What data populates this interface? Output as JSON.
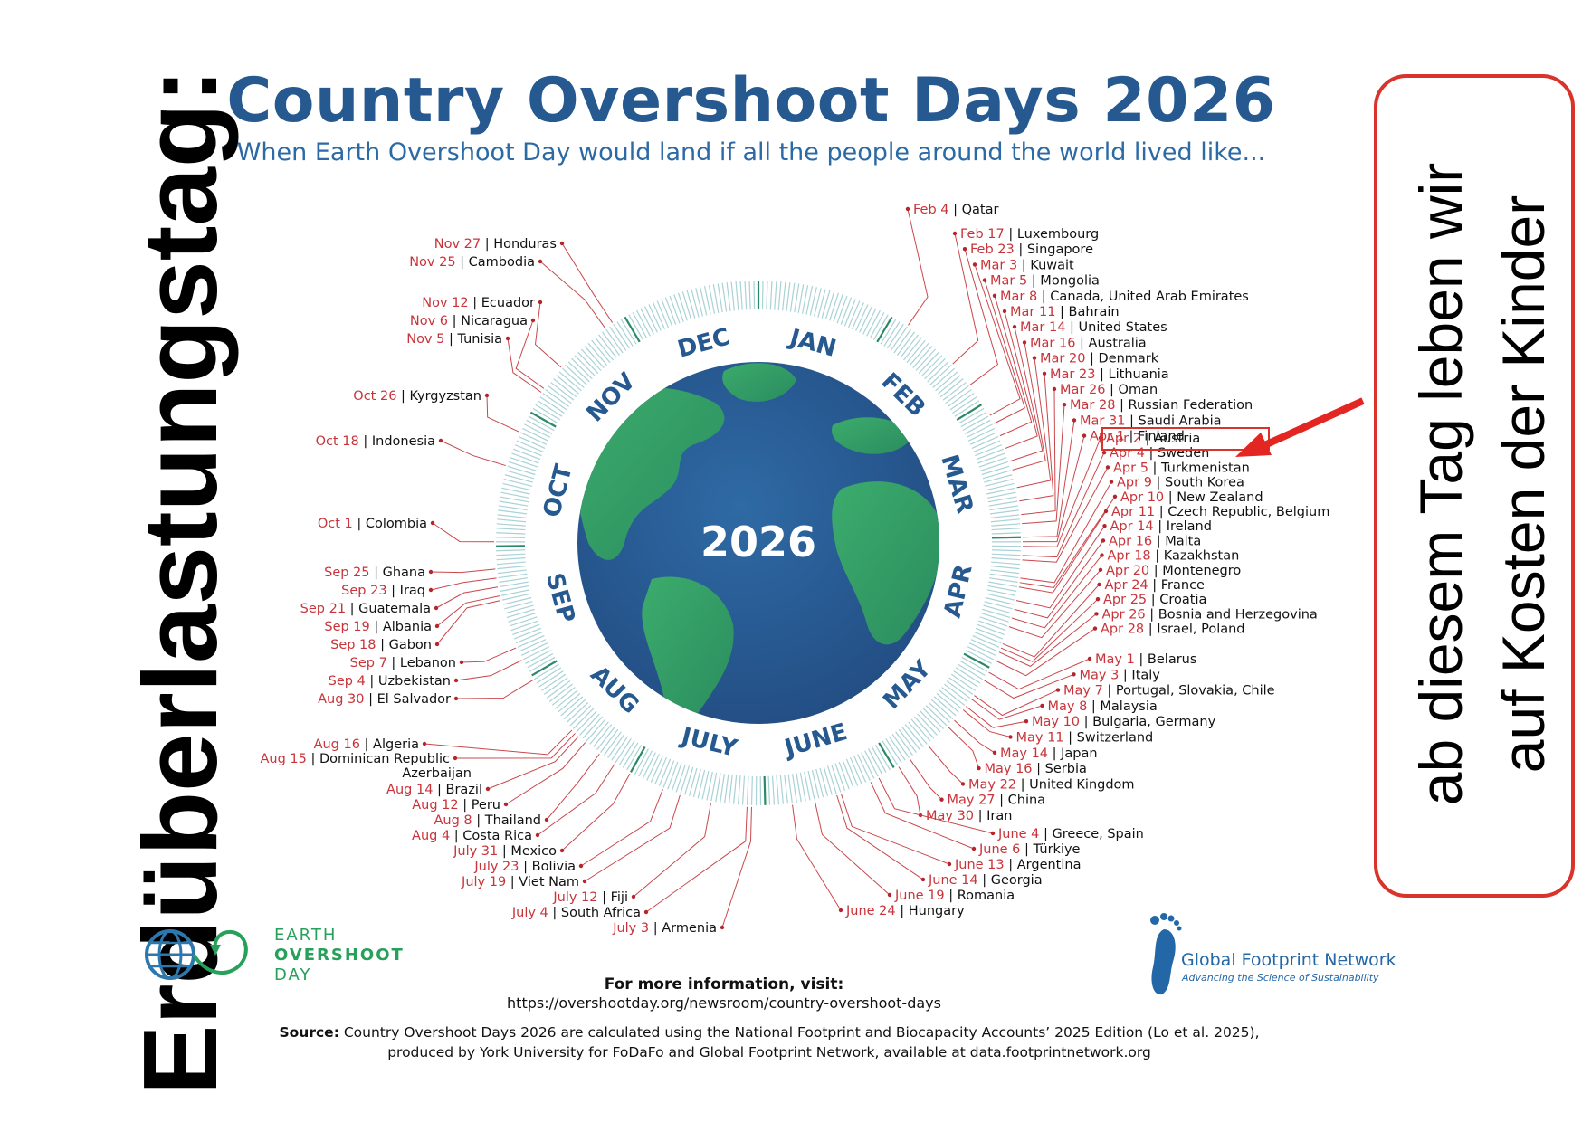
{
  "side_title": "Erdüberlastungstag:",
  "title": "Country Overshoot Days 2026",
  "subtitle": "When Earth Overshoot Day would land if all the people around the world lived like...",
  "globe_year": "2026",
  "months": [
    "JAN",
    "FEB",
    "MAR",
    "APR",
    "MAY",
    "JUNE",
    "JULY",
    "AUG",
    "SEP",
    "OCT",
    "NOV",
    "DEC"
  ],
  "callout": {
    "line1": "ab diesem Tag leben wir",
    "line2": "auf Kosten der Kinder"
  },
  "highlight": {
    "date": "Apr 2",
    "country": "Austria"
  },
  "right_labels": [
    {
      "date": "Feb 4",
      "country": "Qatar"
    },
    {
      "date": "Feb 17",
      "country": "Luxembourg"
    },
    {
      "date": "Feb 23",
      "country": "Singapore"
    },
    {
      "date": "Mar 3",
      "country": "Kuwait"
    },
    {
      "date": "Mar 5",
      "country": "Mongolia"
    },
    {
      "date": "Mar 8",
      "country": "Canada, United Arab Emirates"
    },
    {
      "date": "Mar 11",
      "country": "Bahrain"
    },
    {
      "date": "Mar 14",
      "country": "United States"
    },
    {
      "date": "Mar 16",
      "country": "Australia"
    },
    {
      "date": "Mar 20",
      "country": "Denmark"
    },
    {
      "date": "Mar 23",
      "country": "Lithuania"
    },
    {
      "date": "Mar 26",
      "country": "Oman"
    },
    {
      "date": "Mar 28",
      "country": "Russian Federation"
    },
    {
      "date": "Mar 31",
      "country": "Saudi Arabia"
    },
    {
      "date": "Apr 1",
      "country": "Finland"
    },
    {
      "date": "Apr 2",
      "country": "Austria"
    },
    {
      "date": "Apr 4",
      "country": "Sweden"
    },
    {
      "date": "Apr 5",
      "country": "Turkmenistan"
    },
    {
      "date": "Apr 9",
      "country": "South Korea"
    },
    {
      "date": "Apr 10",
      "country": "New Zealand"
    },
    {
      "date": "Apr 11",
      "country": "Czech Republic, Belgium"
    },
    {
      "date": "Apr 14",
      "country": "Ireland"
    },
    {
      "date": "Apr 16",
      "country": "Malta"
    },
    {
      "date": "Apr 18",
      "country": "Kazakhstan"
    },
    {
      "date": "Apr 20",
      "country": "Montenegro"
    },
    {
      "date": "Apr 24",
      "country": "France"
    },
    {
      "date": "Apr 25",
      "country": "Croatia"
    },
    {
      "date": "Apr 26",
      "country": "Bosnia and Herzegovina"
    },
    {
      "date": "Apr 28",
      "country": "Israel, Poland"
    },
    {
      "date": "May 1",
      "country": "Belarus"
    },
    {
      "date": "May 3",
      "country": "Italy"
    },
    {
      "date": "May 7",
      "country": "Portugal, Slovakia, Chile"
    },
    {
      "date": "May 8",
      "country": "Malaysia"
    },
    {
      "date": "May 10",
      "country": "Bulgaria, Germany"
    },
    {
      "date": "May 11",
      "country": "Switzerland"
    },
    {
      "date": "May 14",
      "country": "Japan"
    },
    {
      "date": "May 16",
      "country": "Serbia"
    },
    {
      "date": "May 22",
      "country": "United Kingdom"
    },
    {
      "date": "May 27",
      "country": "China"
    },
    {
      "date": "May 30",
      "country": "Iran"
    },
    {
      "date": "June 4",
      "country": "Greece, Spain"
    },
    {
      "date": "June 6",
      "country": "Türkiye"
    },
    {
      "date": "June 13",
      "country": "Argentina"
    },
    {
      "date": "June 14",
      "country": "Georgia"
    },
    {
      "date": "June 19",
      "country": "Romania"
    },
    {
      "date": "June 24",
      "country": "Hungary"
    }
  ],
  "left_labels": [
    {
      "date": "Nov 27",
      "country": "Honduras"
    },
    {
      "date": "Nov 25",
      "country": "Cambodia"
    },
    {
      "date": "Nov 12",
      "country": "Ecuador"
    },
    {
      "date": "Nov 6",
      "country": "Nicaragua"
    },
    {
      "date": "Nov 5",
      "country": "Tunisia"
    },
    {
      "date": "Oct 26",
      "country": "Kyrgyzstan"
    },
    {
      "date": "Oct 18",
      "country": "Indonesia"
    },
    {
      "date": "Oct 1",
      "country": "Colombia"
    },
    {
      "date": "Sep 25",
      "country": "Ghana"
    },
    {
      "date": "Sep 23",
      "country": "Iraq"
    },
    {
      "date": "Sep 21",
      "country": "Guatemala"
    },
    {
      "date": "Sep 19",
      "country": "Albania"
    },
    {
      "date": "Sep 18",
      "country": "Gabon"
    },
    {
      "date": "Sep 7",
      "country": "Lebanon"
    },
    {
      "date": "Sep 4",
      "country": "Uzbekistan"
    },
    {
      "date": "Aug 30",
      "country": "El Salvador"
    },
    {
      "date": "Aug 16",
      "country": "Algeria"
    },
    {
      "date": "Aug 15",
      "country": "Dominican Republic"
    },
    {
      "date": "",
      "country": "Azerbaijan"
    },
    {
      "date": "Aug 14",
      "country": "Brazil"
    },
    {
      "date": "Aug 12",
      "country": "Peru"
    },
    {
      "date": "Aug 8",
      "country": "Thailand"
    },
    {
      "date": "Aug 4",
      "country": "Costa Rica"
    },
    {
      "date": "July 31",
      "country": "Mexico"
    },
    {
      "date": "July 23",
      "country": "Bolivia"
    },
    {
      "date": "July 19",
      "country": "Viet Nam"
    },
    {
      "date": "July 12",
      "country": "Fiji"
    },
    {
      "date": "July 4",
      "country": "South Africa"
    },
    {
      "date": "July 3",
      "country": "Armenia"
    }
  ],
  "logos": {
    "earth": [
      "EARTH",
      "OVERSHOOT",
      "DAY"
    ],
    "gfn_name": "Global Footprint Network",
    "gfn_tagline": "Advancing the Science of Sustainability"
  },
  "footer": {
    "heading": "For more information, visit:",
    "url": "https://overshootday.org/newsroom/country-overshoot-days",
    "source_label": "Source:",
    "source_text": "Country Overshoot Days 2026 are calculated using the National Footprint and Biocapacity Accounts’ 2025 Edition (Lo et al. 2025),",
    "source_text2": "produced by York University for FoDaFo and Global Footprint Network, available at data.footprintnetwork.org"
  },
  "colors": {
    "title_blue": "#25598f",
    "date_red": "#c8343a",
    "ocean": "#2a5f96",
    "land": "#2fa05e",
    "ring": "#a9d2d6",
    "callout_border": "#d9332b"
  }
}
